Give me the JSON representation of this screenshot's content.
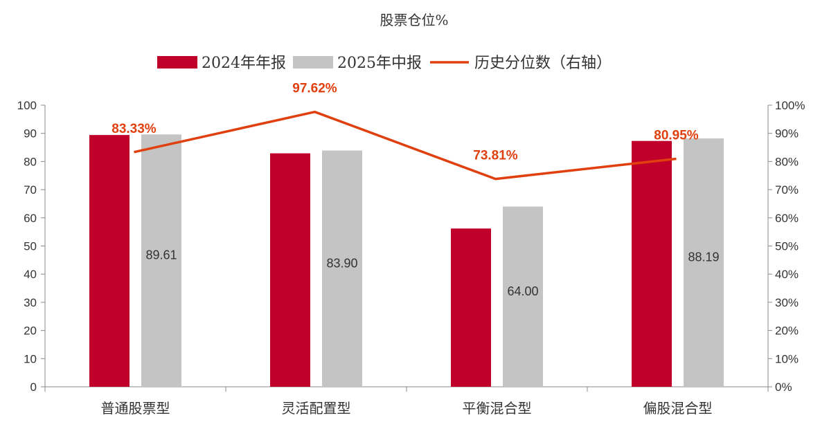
{
  "chart_data": {
    "type": "bar",
    "title": "股票仓位%",
    "categories": [
      "普通股票型",
      "灵活配置型",
      "平衡混合型",
      "偏股混合型"
    ],
    "series": [
      {
        "name": "2024年年报",
        "kind": "bar",
        "axis": "left",
        "color": "#c0002a",
        "values": [
          89.4,
          82.9,
          56.2,
          87.3
        ],
        "labels": [
          "",
          "",
          "",
          ""
        ]
      },
      {
        "name": "2025年中报",
        "kind": "bar",
        "axis": "left",
        "color": "#c4c4c4",
        "values": [
          89.61,
          83.9,
          64.0,
          88.19
        ],
        "labels": [
          "89.61",
          "83.90",
          "64.00",
          "88.19"
        ]
      },
      {
        "name": "历史分位数（右轴）",
        "kind": "line",
        "axis": "right",
        "color": "#e0400f",
        "values": [
          83.33,
          97.62,
          73.81,
          80.95
        ],
        "labels": [
          "83.33%",
          "97.62%",
          "73.81%",
          "80.95%"
        ]
      }
    ],
    "y_left": {
      "min": 0,
      "max": 100,
      "ticks": [
        "0",
        "10",
        "20",
        "30",
        "40",
        "50",
        "60",
        "70",
        "80",
        "90",
        "100"
      ]
    },
    "y_right": {
      "min": 0,
      "max": 100,
      "ticks": [
        "0%",
        "10%",
        "20%",
        "30%",
        "40%",
        "50%",
        "60%",
        "70%",
        "80%",
        "90%",
        "100%"
      ]
    },
    "legend_position": "top",
    "grid": false
  }
}
